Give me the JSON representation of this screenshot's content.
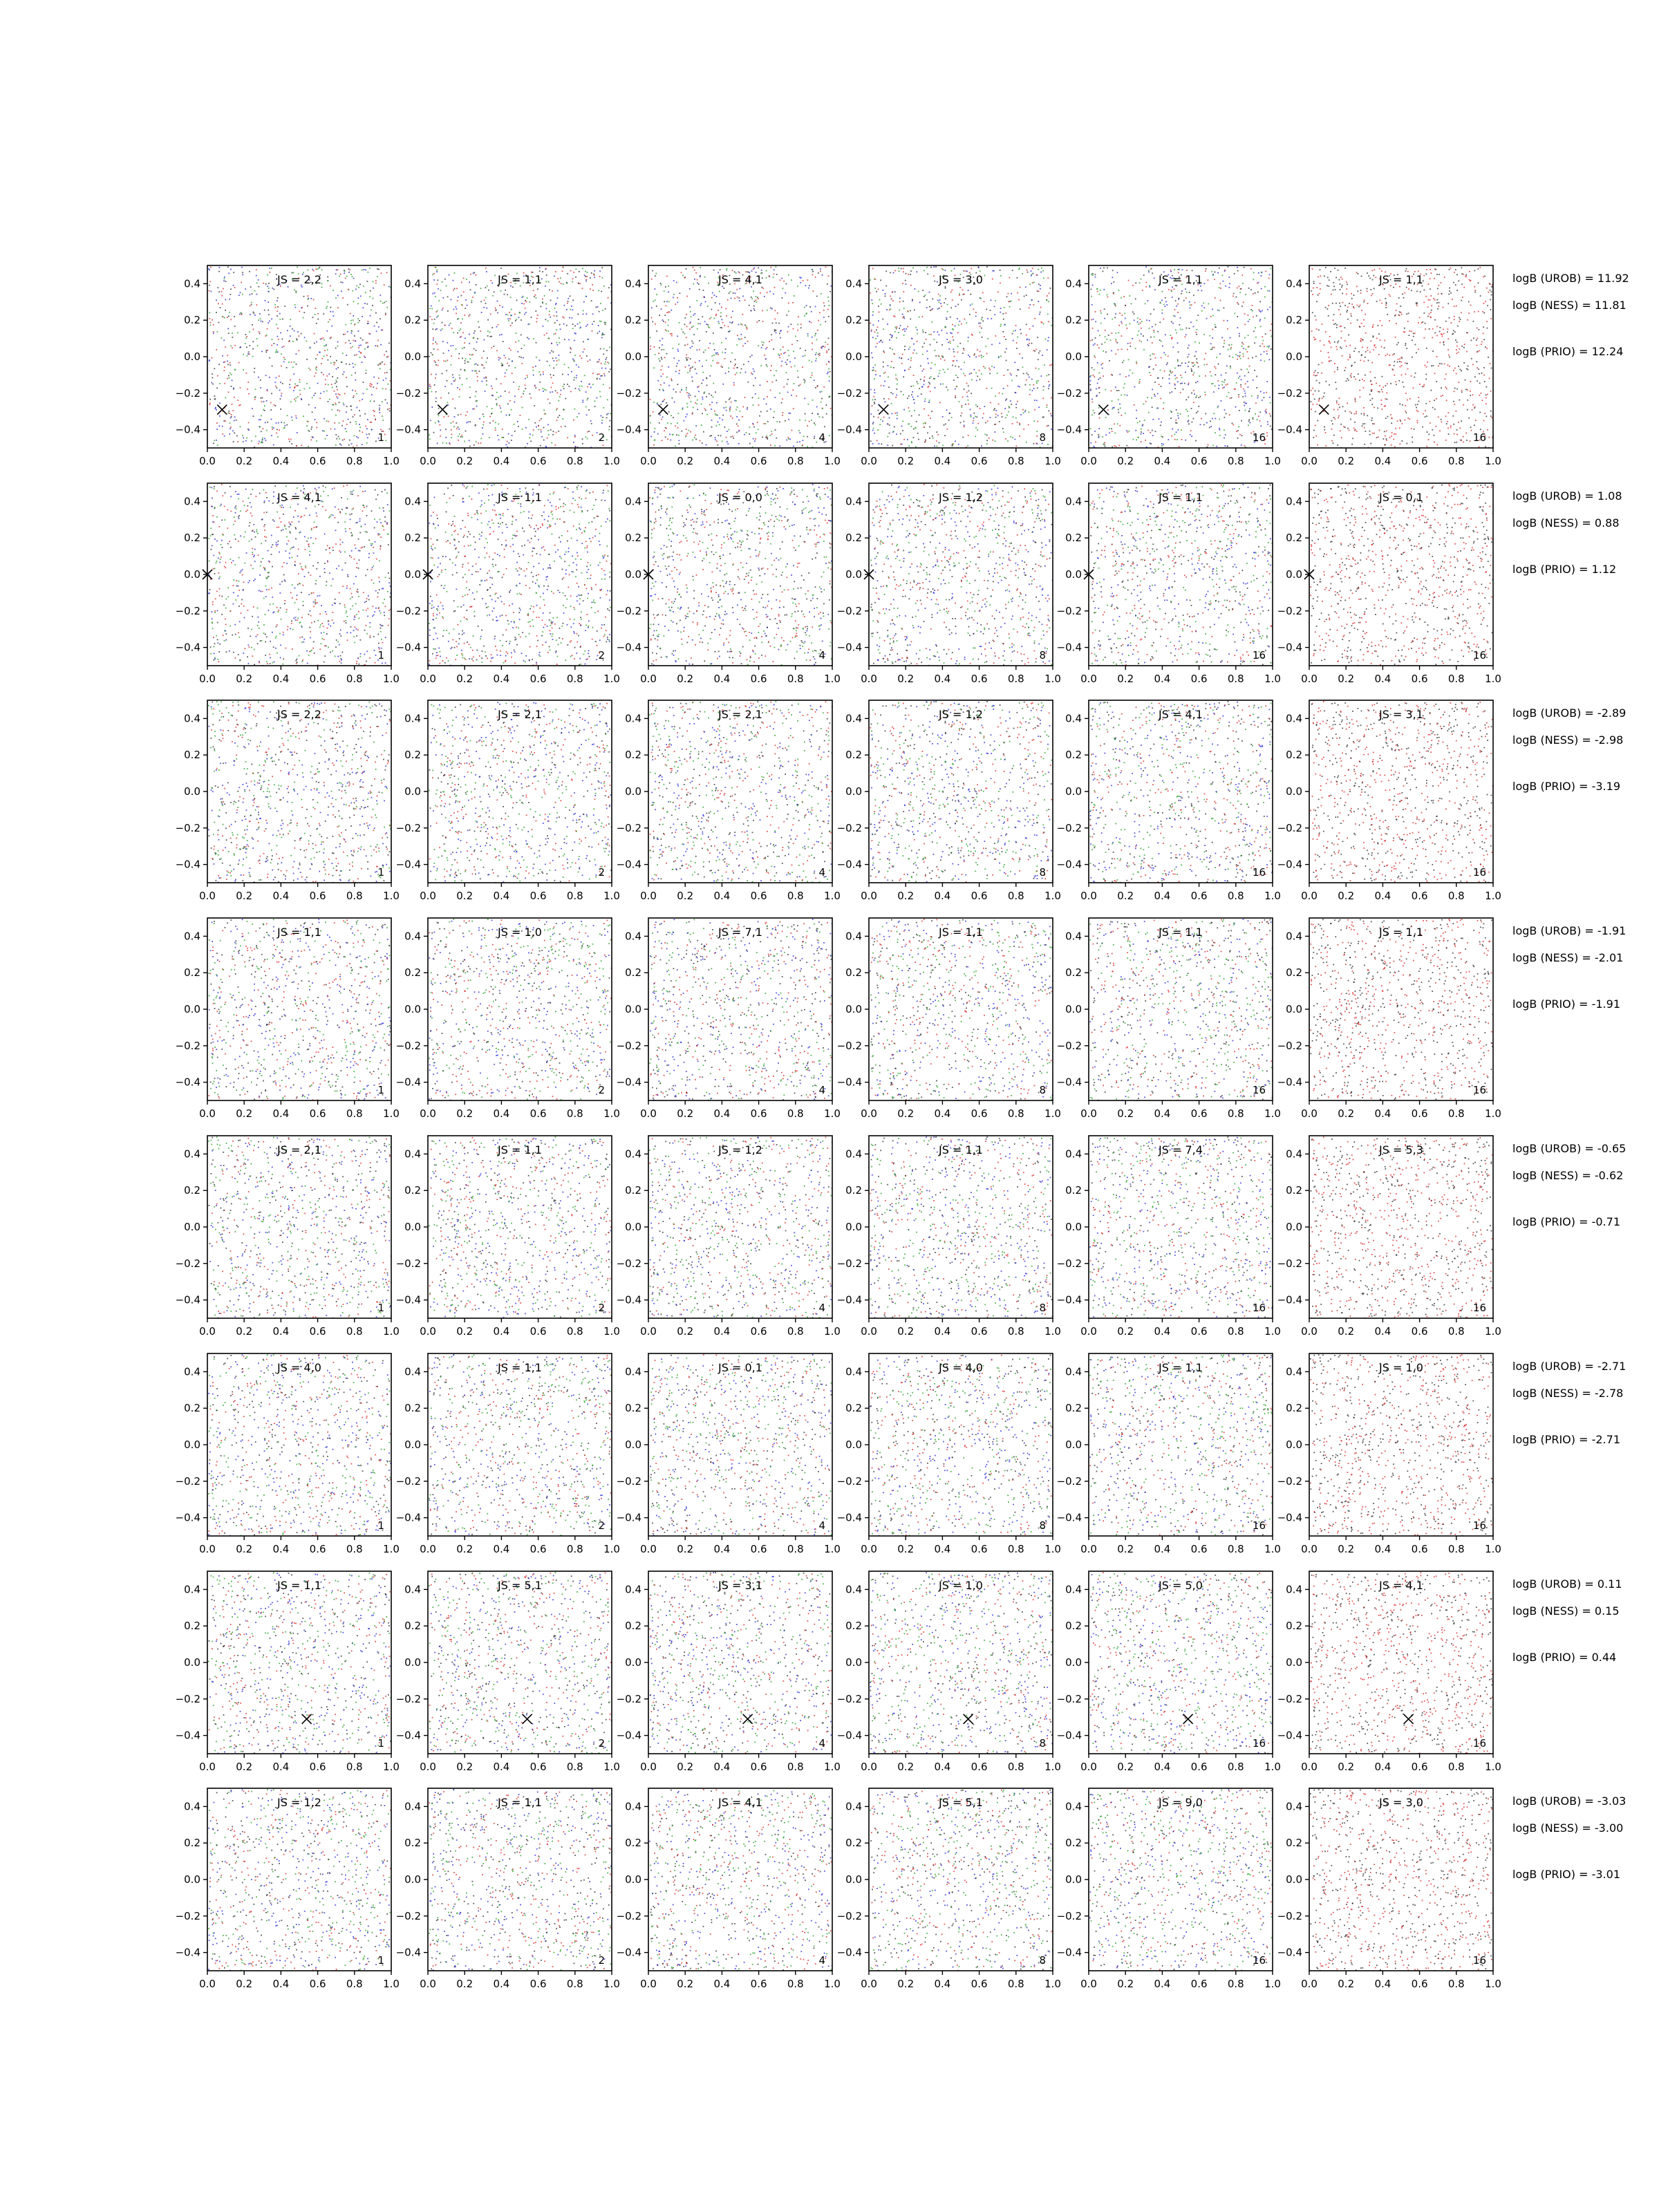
{
  "chart_data": {
    "type": "scatter",
    "layout": {
      "rows": 8,
      "columns": 6
    },
    "xlim": [
      0.0,
      1.0
    ],
    "ylim": [
      -0.5,
      0.5
    ],
    "x_ticks": [
      "0.0",
      "0.2",
      "0.4",
      "0.6",
      "0.8",
      "1.0"
    ],
    "y_ticks": [
      "−0.4",
      "−0.2",
      "0.0",
      "0.2",
      "0.4"
    ],
    "y_tick_values": [
      -0.4,
      -0.2,
      0.0,
      0.2,
      0.4
    ],
    "column_labels": [
      "1",
      "2",
      "4",
      "8",
      "16",
      "16"
    ],
    "point_colors": [
      "#1f1fd6",
      "#d62020",
      "#1a9a1a",
      "#222222"
    ],
    "last_column_colors": [
      "#d62020",
      "#222222"
    ],
    "rows": [
      {
        "js": [
          "JS = 2,2",
          "JS = 1,1",
          "JS = 4,1",
          "JS = 3,0",
          "JS = 1,1",
          "JS = 1,1"
        ],
        "marker": [
          0.08,
          -0.29
        ],
        "logB": [
          "logB (UROB) = 11.92",
          "logB (NESS) = 11.81",
          "logB (PRIO) = 12.24"
        ]
      },
      {
        "js": [
          "JS = 4,1",
          "JS = 1,1",
          "JS = 0,0",
          "JS = 1,2",
          "JS = 1,1",
          "JS = 0,1"
        ],
        "marker": [
          0.0,
          0.0
        ],
        "logB": [
          "logB (UROB) = 1.08",
          "logB (NESS) = 0.88",
          "logB (PRIO) = 1.12"
        ]
      },
      {
        "js": [
          "JS = 2,2",
          "JS = 2,1",
          "JS = 2,1",
          "JS = 1,2",
          "JS = 4,1",
          "JS = 3,1"
        ],
        "marker": null,
        "logB": [
          "logB (UROB) = -2.89",
          "logB (NESS) = -2.98",
          "logB (PRIO) = -3.19"
        ]
      },
      {
        "js": [
          "JS = 1,1",
          "JS = 1,0",
          "JS = 7,1",
          "JS = 1,1",
          "JS = 1,1",
          "JS = 1,1"
        ],
        "marker": null,
        "logB": [
          "logB (UROB) = -1.91",
          "logB (NESS) = -2.01",
          "logB (PRIO) = -1.91"
        ]
      },
      {
        "js": [
          "JS = 2,1",
          "JS = 1,1",
          "JS = 1,2",
          "JS = 1,1",
          "JS = 7,4",
          "JS = 5,3"
        ],
        "marker": null,
        "logB": [
          "logB (UROB) = -0.65",
          "logB (NESS) = -0.62",
          "logB (PRIO) = -0.71"
        ]
      },
      {
        "js": [
          "JS = 4,0",
          "JS = 1,1",
          "JS = 0,1",
          "JS = 4,0",
          "JS = 1,1",
          "JS = 1,0"
        ],
        "marker": null,
        "logB": [
          "logB (UROB) = -2.71",
          "logB (NESS) = -2.78",
          "logB (PRIO) = -2.71"
        ]
      },
      {
        "js": [
          "JS = 1,1",
          "JS = 5,1",
          "JS = 3,1",
          "JS = 1,0",
          "JS = 5,0",
          "JS = 4,1"
        ],
        "marker": [
          0.54,
          -0.31
        ],
        "logB": [
          "logB (UROB) = 0.11",
          "logB (NESS) = 0.15",
          "logB (PRIO) = 0.44"
        ]
      },
      {
        "js": [
          "JS = 1,2",
          "JS = 1,1",
          "JS = 4,1",
          "JS = 5,1",
          "JS = 9,0",
          "JS = 3,0"
        ],
        "marker": null,
        "logB": [
          "logB (UROB) = -3.03",
          "logB (NESS) = -3.00",
          "logB (PRIO) = -3.01"
        ]
      }
    ]
  }
}
